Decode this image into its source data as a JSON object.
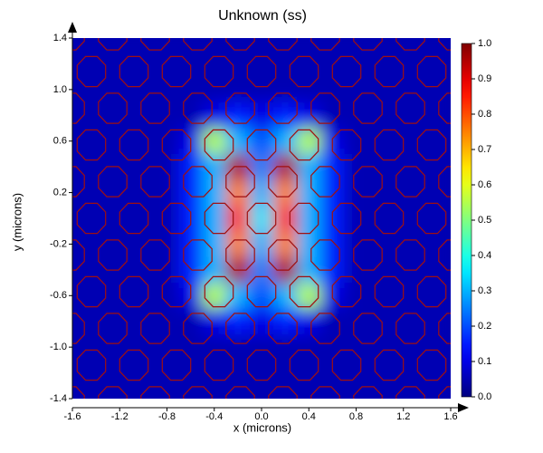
{
  "chart_data": {
    "type": "heatmap",
    "title": "Unknown (ss)",
    "x_label": "x (microns)",
    "y_label": "y (microns)",
    "x": [
      -1.6,
      -1.4,
      -1.2,
      -1.0,
      -0.8,
      -0.6,
      -0.4,
      -0.2,
      0.0,
      0.2,
      0.4,
      0.6,
      0.8,
      1.0,
      1.2,
      1.4,
      1.6
    ],
    "y": [
      1.4,
      1.2,
      1.0,
      0.8,
      0.6,
      0.4,
      0.2,
      0.0,
      -0.2,
      -0.4,
      -0.6,
      -0.8,
      -1.0,
      -1.2,
      -1.4
    ],
    "z": [
      [
        0.05,
        0.05,
        0.05,
        0.05,
        0.05,
        0.05,
        0.05,
        0.05,
        0.05,
        0.05,
        0.05,
        0.05,
        0.05,
        0.05,
        0.05,
        0.05,
        0.05
      ],
      [
        0.05,
        0.05,
        0.05,
        0.05,
        0.05,
        0.05,
        0.05,
        0.05,
        0.05,
        0.05,
        0.05,
        0.05,
        0.05,
        0.05,
        0.05,
        0.05,
        0.05
      ],
      [
        0.05,
        0.05,
        0.05,
        0.05,
        0.05,
        0.05,
        0.05,
        0.05,
        0.05,
        0.05,
        0.05,
        0.05,
        0.05,
        0.05,
        0.05,
        0.05,
        0.05
      ],
      [
        0.05,
        0.05,
        0.05,
        0.05,
        0.05,
        0.05,
        0.1,
        0.15,
        0.1,
        0.15,
        0.1,
        0.05,
        0.05,
        0.05,
        0.05,
        0.05,
        0.05
      ],
      [
        0.05,
        0.05,
        0.05,
        0.05,
        0.05,
        0.1,
        0.55,
        0.3,
        0.2,
        0.3,
        0.55,
        0.1,
        0.05,
        0.05,
        0.05,
        0.05,
        0.05
      ],
      [
        0.05,
        0.05,
        0.05,
        0.05,
        0.05,
        0.15,
        0.3,
        0.95,
        0.25,
        0.95,
        0.3,
        0.15,
        0.05,
        0.05,
        0.05,
        0.05,
        0.05
      ],
      [
        0.05,
        0.05,
        0.05,
        0.05,
        0.05,
        0.15,
        0.3,
        0.75,
        0.3,
        0.75,
        0.3,
        0.15,
        0.05,
        0.05,
        0.05,
        0.05,
        0.05
      ],
      [
        0.05,
        0.05,
        0.05,
        0.05,
        0.05,
        0.15,
        0.3,
        0.85,
        0.35,
        0.85,
        0.3,
        0.15,
        0.05,
        0.05,
        0.05,
        0.05,
        0.05
      ],
      [
        0.05,
        0.05,
        0.05,
        0.05,
        0.05,
        0.15,
        0.3,
        0.75,
        0.3,
        0.75,
        0.3,
        0.15,
        0.05,
        0.05,
        0.05,
        0.05,
        0.05
      ],
      [
        0.05,
        0.05,
        0.05,
        0.05,
        0.05,
        0.15,
        0.3,
        0.95,
        0.25,
        0.95,
        0.3,
        0.15,
        0.05,
        0.05,
        0.05,
        0.05,
        0.05
      ],
      [
        0.05,
        0.05,
        0.05,
        0.05,
        0.05,
        0.1,
        0.55,
        0.3,
        0.2,
        0.3,
        0.55,
        0.1,
        0.05,
        0.05,
        0.05,
        0.05,
        0.05
      ],
      [
        0.05,
        0.05,
        0.05,
        0.05,
        0.05,
        0.05,
        0.1,
        0.15,
        0.1,
        0.15,
        0.1,
        0.05,
        0.05,
        0.05,
        0.05,
        0.05,
        0.05
      ],
      [
        0.05,
        0.05,
        0.05,
        0.05,
        0.05,
        0.05,
        0.05,
        0.05,
        0.05,
        0.05,
        0.05,
        0.05,
        0.05,
        0.05,
        0.05,
        0.05,
        0.05
      ],
      [
        0.05,
        0.05,
        0.05,
        0.05,
        0.05,
        0.05,
        0.05,
        0.05,
        0.05,
        0.05,
        0.05,
        0.05,
        0.05,
        0.05,
        0.05,
        0.05,
        0.05
      ],
      [
        0.05,
        0.05,
        0.05,
        0.05,
        0.05,
        0.05,
        0.05,
        0.05,
        0.05,
        0.05,
        0.05,
        0.05,
        0.05,
        0.05,
        0.05,
        0.05,
        0.05
      ]
    ],
    "colormap": "jet",
    "xlim": [
      -1.6,
      1.6
    ],
    "ylim": [
      -1.4,
      1.4
    ],
    "zlim": [
      0,
      1
    ],
    "xticks": [
      -1.6,
      -1.2,
      -0.8,
      -0.4,
      {
        "value": 0,
        "label": "0.0"
      },
      0.4,
      0.8,
      1.2,
      1.6
    ],
    "yticks": [
      1.4,
      {
        "value": 1,
        "label": "1.0"
      },
      0.6,
      0.2,
      -0.2,
      -0.6,
      {
        "value": -1,
        "label": "-1.0"
      },
      -1.4
    ],
    "zticks": [
      {
        "value": 0,
        "label": "0.0"
      },
      0.1,
      0.2,
      0.3,
      0.4,
      0.5,
      0.6,
      0.7,
      0.8,
      0.9,
      {
        "value": 1,
        "label": "1.0"
      }
    ]
  }
}
